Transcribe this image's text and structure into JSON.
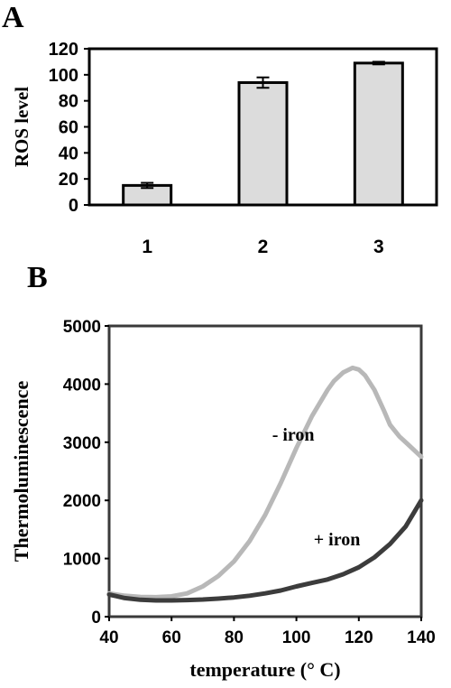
{
  "chart_data": [
    {
      "panel_label": "A",
      "type": "bar",
      "categories": [
        "1",
        "2",
        "3"
      ],
      "values": [
        15,
        94,
        109
      ],
      "errors": [
        2,
        4,
        1
      ],
      "ylabel": "ROS level",
      "xlabel": "",
      "ylim": [
        0,
        120
      ],
      "yticks": [
        0,
        20,
        40,
        60,
        80,
        100,
        120
      ],
      "bar_color": "#dcdcdc",
      "grid": false
    },
    {
      "panel_label": "B",
      "type": "line",
      "xlabel": "temperature (° C)",
      "ylabel": "Thermoluminescence",
      "xlim": [
        40,
        140
      ],
      "ylim": [
        0,
        5000
      ],
      "xticks": [
        40,
        60,
        80,
        100,
        120,
        140
      ],
      "yticks": [
        0,
        1000,
        2000,
        3000,
        4000,
        5000
      ],
      "plot_background": "#ffffff",
      "grid": false,
      "series": [
        {
          "name": "- iron",
          "color": "#b8b8b8",
          "x": [
            40,
            45,
            50,
            55,
            60,
            65,
            70,
            75,
            80,
            85,
            90,
            95,
            100,
            105,
            110,
            112,
            115,
            118,
            120,
            122,
            125,
            128,
            130,
            133,
            136,
            140
          ],
          "y": [
            400,
            360,
            340,
            335,
            350,
            400,
            520,
            700,
            950,
            1300,
            1750,
            2300,
            2900,
            3450,
            3900,
            4050,
            4200,
            4280,
            4250,
            4150,
            3900,
            3550,
            3300,
            3100,
            2950,
            2750
          ]
        },
        {
          "name": "+ iron",
          "color": "#3c3c3c",
          "x": [
            40,
            45,
            50,
            55,
            60,
            65,
            70,
            75,
            80,
            85,
            90,
            95,
            100,
            105,
            110,
            115,
            120,
            125,
            130,
            135,
            140
          ],
          "y": [
            380,
            320,
            290,
            280,
            280,
            285,
            295,
            310,
            330,
            360,
            400,
            450,
            520,
            580,
            640,
            730,
            850,
            1020,
            1250,
            1550,
            2000
          ]
        }
      ]
    }
  ]
}
